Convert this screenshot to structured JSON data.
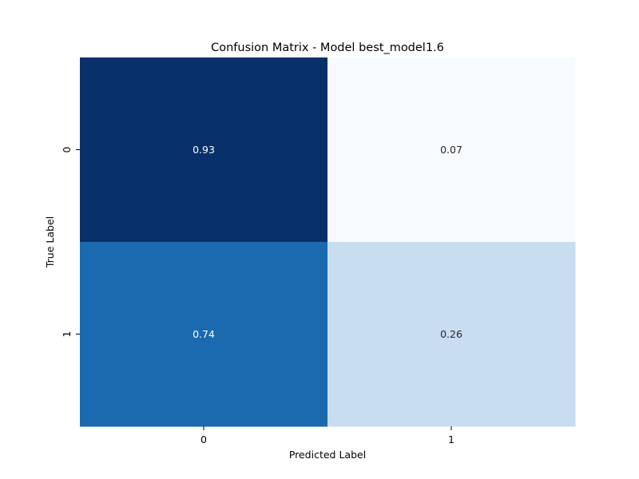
{
  "chart_data": {
    "type": "heatmap",
    "title": "Confusion Matrix - Model best_model1.6",
    "xlabel": "Predicted Label",
    "ylabel": "True Label",
    "x_categories": [
      "0",
      "1"
    ],
    "y_categories": [
      "0",
      "1"
    ],
    "values": [
      [
        0.93,
        0.07
      ],
      [
        0.74,
        0.26
      ]
    ],
    "annotations": [
      [
        "0.93",
        "0.07"
      ],
      [
        "0.74",
        "0.26"
      ]
    ],
    "colormap": "Blues",
    "cell_colors": [
      [
        "#08306b",
        "#f7fbff"
      ],
      [
        "#1b69af",
        "#c9ddf0"
      ]
    ],
    "annotation_colors": [
      [
        "#ffffff",
        "#262626"
      ],
      [
        "#ffffff",
        "#262626"
      ]
    ],
    "colorbar": false,
    "grid": false
  }
}
